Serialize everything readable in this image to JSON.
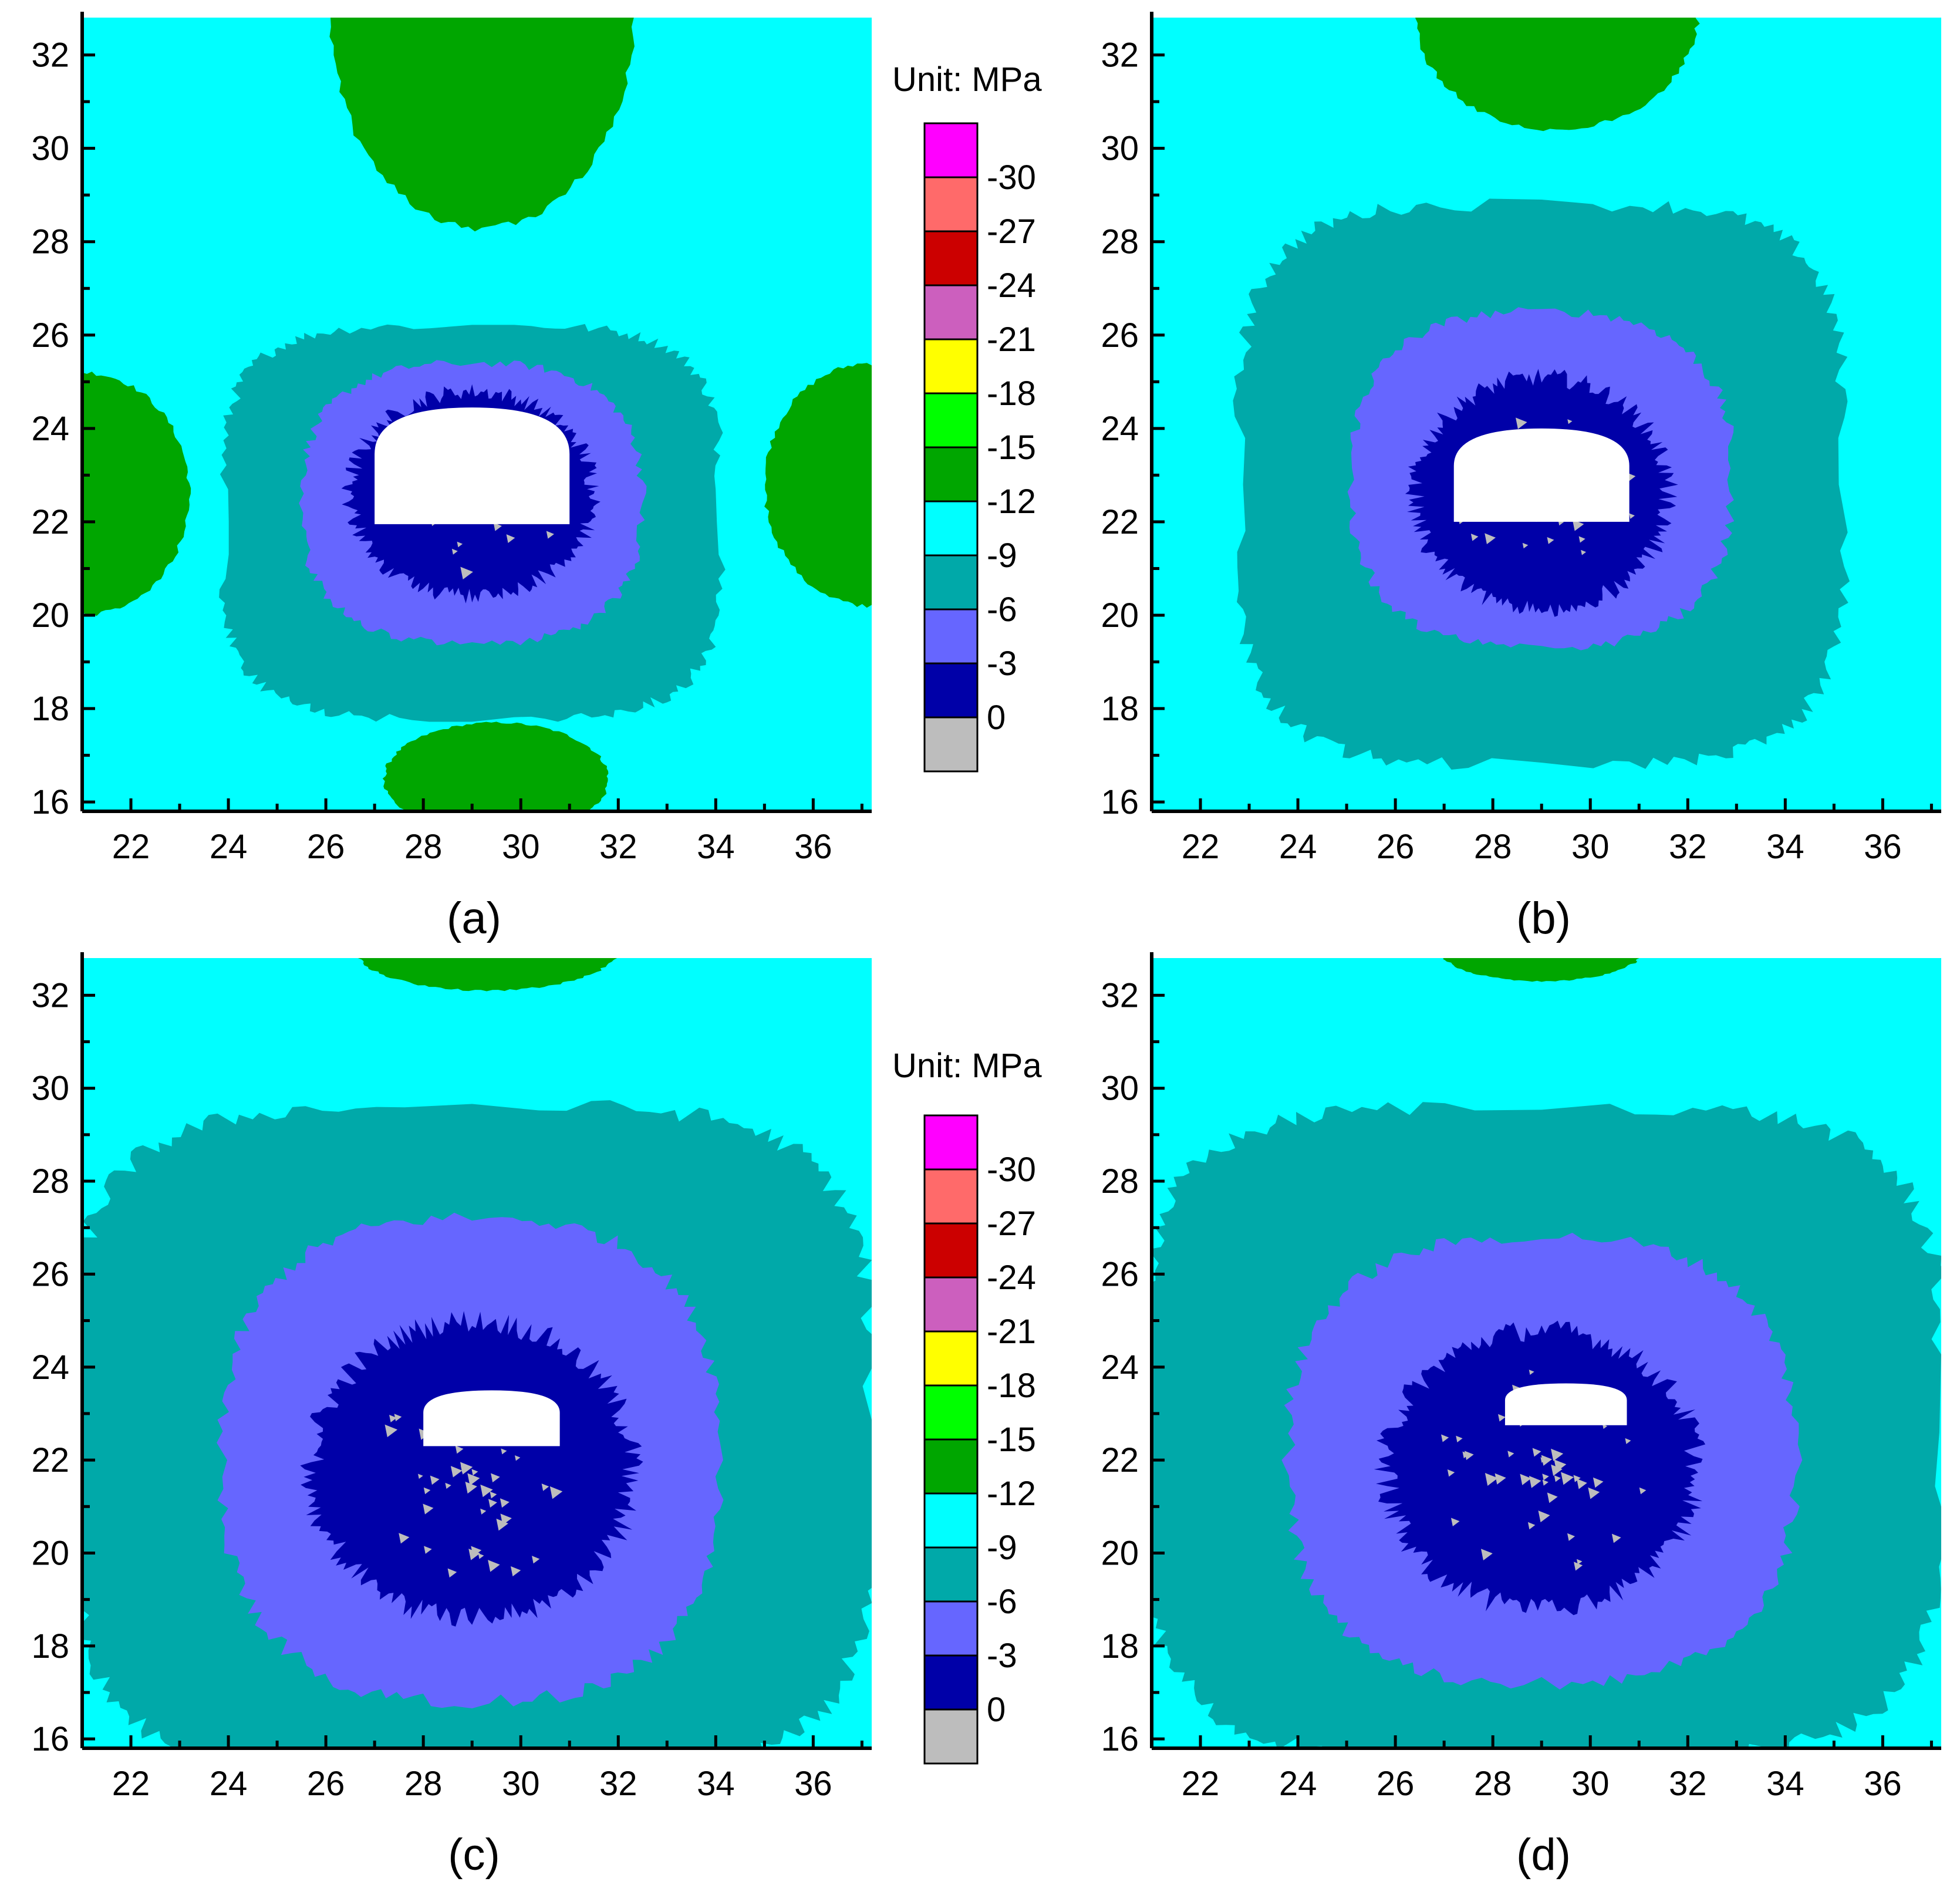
{
  "chart_data": [
    {
      "type": "heatmap",
      "panel_label": "(a)",
      "xlim": [
        21,
        37.2
      ],
      "ylim": [
        15.8,
        32.8
      ],
      "xticks": [
        22,
        24,
        26,
        28,
        30,
        32,
        34,
        36
      ],
      "yticks": [
        16,
        18,
        20,
        22,
        24,
        26,
        28,
        30,
        32
      ],
      "opening_center": [
        29,
        23.2
      ],
      "zones": {
        "green_lobes": [
          {
            "cx": 29.2,
            "cy": 32.8,
            "rx": 3.1,
            "ry": 4.5
          },
          {
            "cx": 29.5,
            "cy": 16.5,
            "rx": 2.3,
            "ry": 1.2
          },
          {
            "cx": 21.0,
            "cy": 22.6,
            "rx": 2.2,
            "ry": 2.6
          },
          {
            "cx": 37.2,
            "cy": 22.8,
            "rx": 2.2,
            "ry": 2.6
          }
        ],
        "teal": {
          "cx": 29.0,
          "cy": 22.0,
          "rx": 5.1,
          "ry": 4.2
        },
        "medium_blue": {
          "cx": 29.0,
          "cy": 22.4,
          "rx": 3.5,
          "ry": 3.0
        },
        "dark_blue": {
          "cx": 29.0,
          "cy": 22.6,
          "rx": 2.5,
          "ry": 2.2
        }
      }
    },
    {
      "type": "heatmap",
      "panel_label": "(b)",
      "xlim": [
        21,
        37.2
      ],
      "ylim": [
        15.8,
        32.8
      ],
      "xticks": [
        22,
        24,
        26,
        28,
        30,
        32,
        34,
        36
      ],
      "yticks": [
        16,
        18,
        20,
        22,
        24,
        26,
        28,
        30,
        32
      ],
      "opening_center": [
        29,
        23.0
      ],
      "zones": {
        "green_lobes": [
          {
            "cx": 29.3,
            "cy": 32.9,
            "rx": 2.9,
            "ry": 2.5
          }
        ],
        "teal": {
          "cx": 29.0,
          "cy": 22.8,
          "rx": 6.2,
          "ry": 6.0
        },
        "medium_blue": {
          "cx": 29.0,
          "cy": 22.9,
          "rx": 3.9,
          "ry": 3.6
        },
        "dark_blue": {
          "cx": 29.0,
          "cy": 22.6,
          "rx": 2.6,
          "ry": 2.5
        }
      }
    },
    {
      "type": "heatmap",
      "panel_label": "(c)",
      "xlim": [
        21,
        37.2
      ],
      "ylim": [
        15.8,
        32.8
      ],
      "xticks": [
        22,
        24,
        26,
        28,
        30,
        32,
        34,
        36
      ],
      "yticks": [
        16,
        18,
        20,
        22,
        24,
        26,
        28,
        30,
        32
      ],
      "opening_center": [
        29.4,
        22.9
      ],
      "zones": {
        "green_lobes": [
          {
            "cx": 29.3,
            "cy": 33.0,
            "rx": 2.7,
            "ry": 0.9
          }
        ],
        "teal": {
          "cx": 29.0,
          "cy": 22.4,
          "rx": 8.2,
          "ry": 7.2
        },
        "medium_blue": {
          "cx": 29.0,
          "cy": 22.0,
          "rx": 5.1,
          "ry": 5.2
        },
        "dark_blue": {
          "cx": 29.0,
          "cy": 21.8,
          "rx": 3.3,
          "ry": 3.2
        }
      }
    },
    {
      "type": "heatmap",
      "panel_label": "(d)",
      "xlim": [
        21,
        37.2
      ],
      "ylim": [
        15.8,
        32.8
      ],
      "xticks": [
        22,
        24,
        26,
        28,
        30,
        32,
        34,
        36
      ],
      "yticks": [
        16,
        18,
        20,
        22,
        24,
        26,
        28,
        30,
        32
      ],
      "opening_center": [
        29.5,
        23.2
      ],
      "zones": {
        "green_lobes": [
          {
            "cx": 29.0,
            "cy": 33.0,
            "rx": 2.1,
            "ry": 0.7
          }
        ],
        "teal": {
          "cx": 29.0,
          "cy": 22.6,
          "rx": 8.2,
          "ry": 7.0
        },
        "medium_blue": {
          "cx": 29.0,
          "cy": 22.0,
          "rx": 5.2,
          "ry": 4.8
        },
        "dark_blue": {
          "cx": 29.0,
          "cy": 21.8,
          "rx": 3.2,
          "ry": 3.0
        }
      }
    }
  ],
  "colorbar": {
    "unit_label": "Unit: MPa",
    "levels": [
      {
        "label": "-30",
        "color": "#ff00ff"
      },
      {
        "label": "-27",
        "color": "#ff6a6a"
      },
      {
        "label": "-24",
        "color": "#cc0000"
      },
      {
        "label": "-21",
        "color": "#cc5fbe"
      },
      {
        "label": "-18",
        "color": "#ffff00"
      },
      {
        "label": "-15",
        "color": "#00ff00"
      },
      {
        "label": "-12",
        "color": "#00a600"
      },
      {
        "label": "-9",
        "color": "#00ffff"
      },
      {
        "label": "-6",
        "color": "#00a9a9"
      },
      {
        "label": "-3",
        "color": "#6666ff"
      },
      {
        "label": "0",
        "color": "#0000a8"
      },
      {
        "label": "",
        "color": "#bdbdbd"
      }
    ]
  },
  "colors": {
    "background_cyan": "#00ffff",
    "green": "#00a600",
    "teal": "#00a9a9",
    "medium_blue": "#6666ff",
    "dark_blue": "#0000a8",
    "gray": "#bdbdbd",
    "opening": "#ffffff"
  }
}
